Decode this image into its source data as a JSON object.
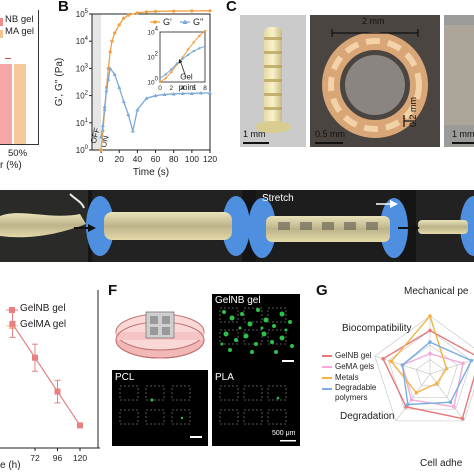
{
  "panels": {
    "A": {
      "legend": [
        "NB gel",
        "MA gel"
      ],
      "tick_label": "50%",
      "xlabel_fragment": "r (%)",
      "colors": {
        "gelnb": "#f08c8c",
        "gelma": "#f5c38a"
      }
    },
    "B": {
      "label": "B"
    },
    "C": {
      "label": "C",
      "scale_2mm": "2 mm",
      "scale_1mm_left": "1 mm",
      "scale_05mm": "0.5 mm",
      "scale_02mm": "0.2 mm",
      "scale_1mm_right": "1 mm"
    },
    "stretch": {
      "label": "Stretch"
    },
    "D": {
      "legend": [
        "GelNB gel",
        "GelMA gel"
      ],
      "xlabel_fragment": "e (h)"
    },
    "F": {
      "label": "F",
      "tile_labels": [
        "GelNB gel",
        "PCL",
        "PLA"
      ],
      "scale_label": "500 μm"
    },
    "G": {
      "label": "G",
      "axes": [
        "Mechanical pe",
        "Biocompatibility",
        "Degradation",
        "Cell adhe"
      ],
      "legend": [
        "GelNB gel",
        "GeMA gels",
        "Metals",
        "Degradable polymers"
      ],
      "colors": [
        "#e8787a",
        "#f4a9d8",
        "#f5b342",
        "#7aaee0"
      ]
    }
  },
  "chart_data": [
    {
      "type": "line",
      "title": "",
      "xlabel": "Time (s)",
      "ylabel": "G', G'' (Pa)",
      "yscale": "log",
      "xlim": [
        -10,
        120
      ],
      "ylim_exp": [
        0,
        5
      ],
      "xticks": [
        "0",
        "20",
        "40",
        "60",
        "80",
        "100",
        "120"
      ],
      "yticks": [
        "10^0",
        "10^1",
        "10^2",
        "10^3",
        "10^4",
        "10^5"
      ],
      "annotations": [
        "OFF",
        "ON"
      ],
      "grid": false,
      "legend_position": "top-right",
      "series": [
        {
          "name": "G'",
          "color": "#f0a040",
          "x": [
            0,
            2,
            4,
            6,
            8,
            10,
            12,
            15,
            20,
            25,
            30,
            40,
            50,
            60,
            80,
            100,
            120
          ],
          "y": [
            1.0,
            5.0,
            30,
            200,
            1000,
            4000,
            10000,
            20000,
            40000,
            70000,
            90000,
            110000,
            120000,
            125000,
            128000,
            130000,
            131000
          ]
        },
        {
          "name": "G''",
          "color": "#7aa8d8",
          "x": [
            0,
            2,
            4,
            6,
            8,
            10,
            15,
            20,
            25,
            30,
            35,
            40,
            50,
            60,
            70,
            80,
            90,
            100,
            110,
            120
          ],
          "y": [
            3,
            8,
            40,
            150,
            400,
            1000,
            600,
            200,
            60,
            20,
            5,
            30,
            80,
            100,
            110,
            115,
            120,
            120,
            125,
            125
          ]
        }
      ],
      "inset": {
        "xlim": [
          0,
          8
        ],
        "ylim_exp": [
          0,
          4
        ],
        "xticks": [
          "0",
          "2",
          "4",
          "6",
          "8"
        ],
        "yticks": [
          "10^0",
          "10^2",
          "10^4"
        ],
        "annotation": [
          "Gel",
          "point"
        ],
        "series": [
          {
            "name": "G'",
            "x": [
              0,
              1,
              2,
              3,
              4,
              5,
              6,
              7,
              8
            ],
            "y": [
              1,
              2,
              6,
              25,
              90,
              400,
              1500,
              5000,
              12000
            ]
          },
          {
            "name": "G''",
            "x": [
              0,
              1,
              2,
              3,
              4,
              5,
              6,
              7,
              8
            ],
            "y": [
              2,
              4,
              10,
              30,
              70,
              150,
              300,
              500,
              700
            ]
          }
        ]
      }
    },
    {
      "type": "line",
      "title": "",
      "xlabel": "e (h)",
      "xticks": [
        "72",
        "96",
        "120"
      ],
      "series": [
        {
          "name": "GelNB gel",
          "color": "#e88080",
          "x": [
            48,
            72,
            96,
            120
          ],
          "y": [
            55,
            40,
            25,
            10
          ],
          "err": [
            6,
            6,
            5,
            0
          ]
        }
      ]
    }
  ]
}
